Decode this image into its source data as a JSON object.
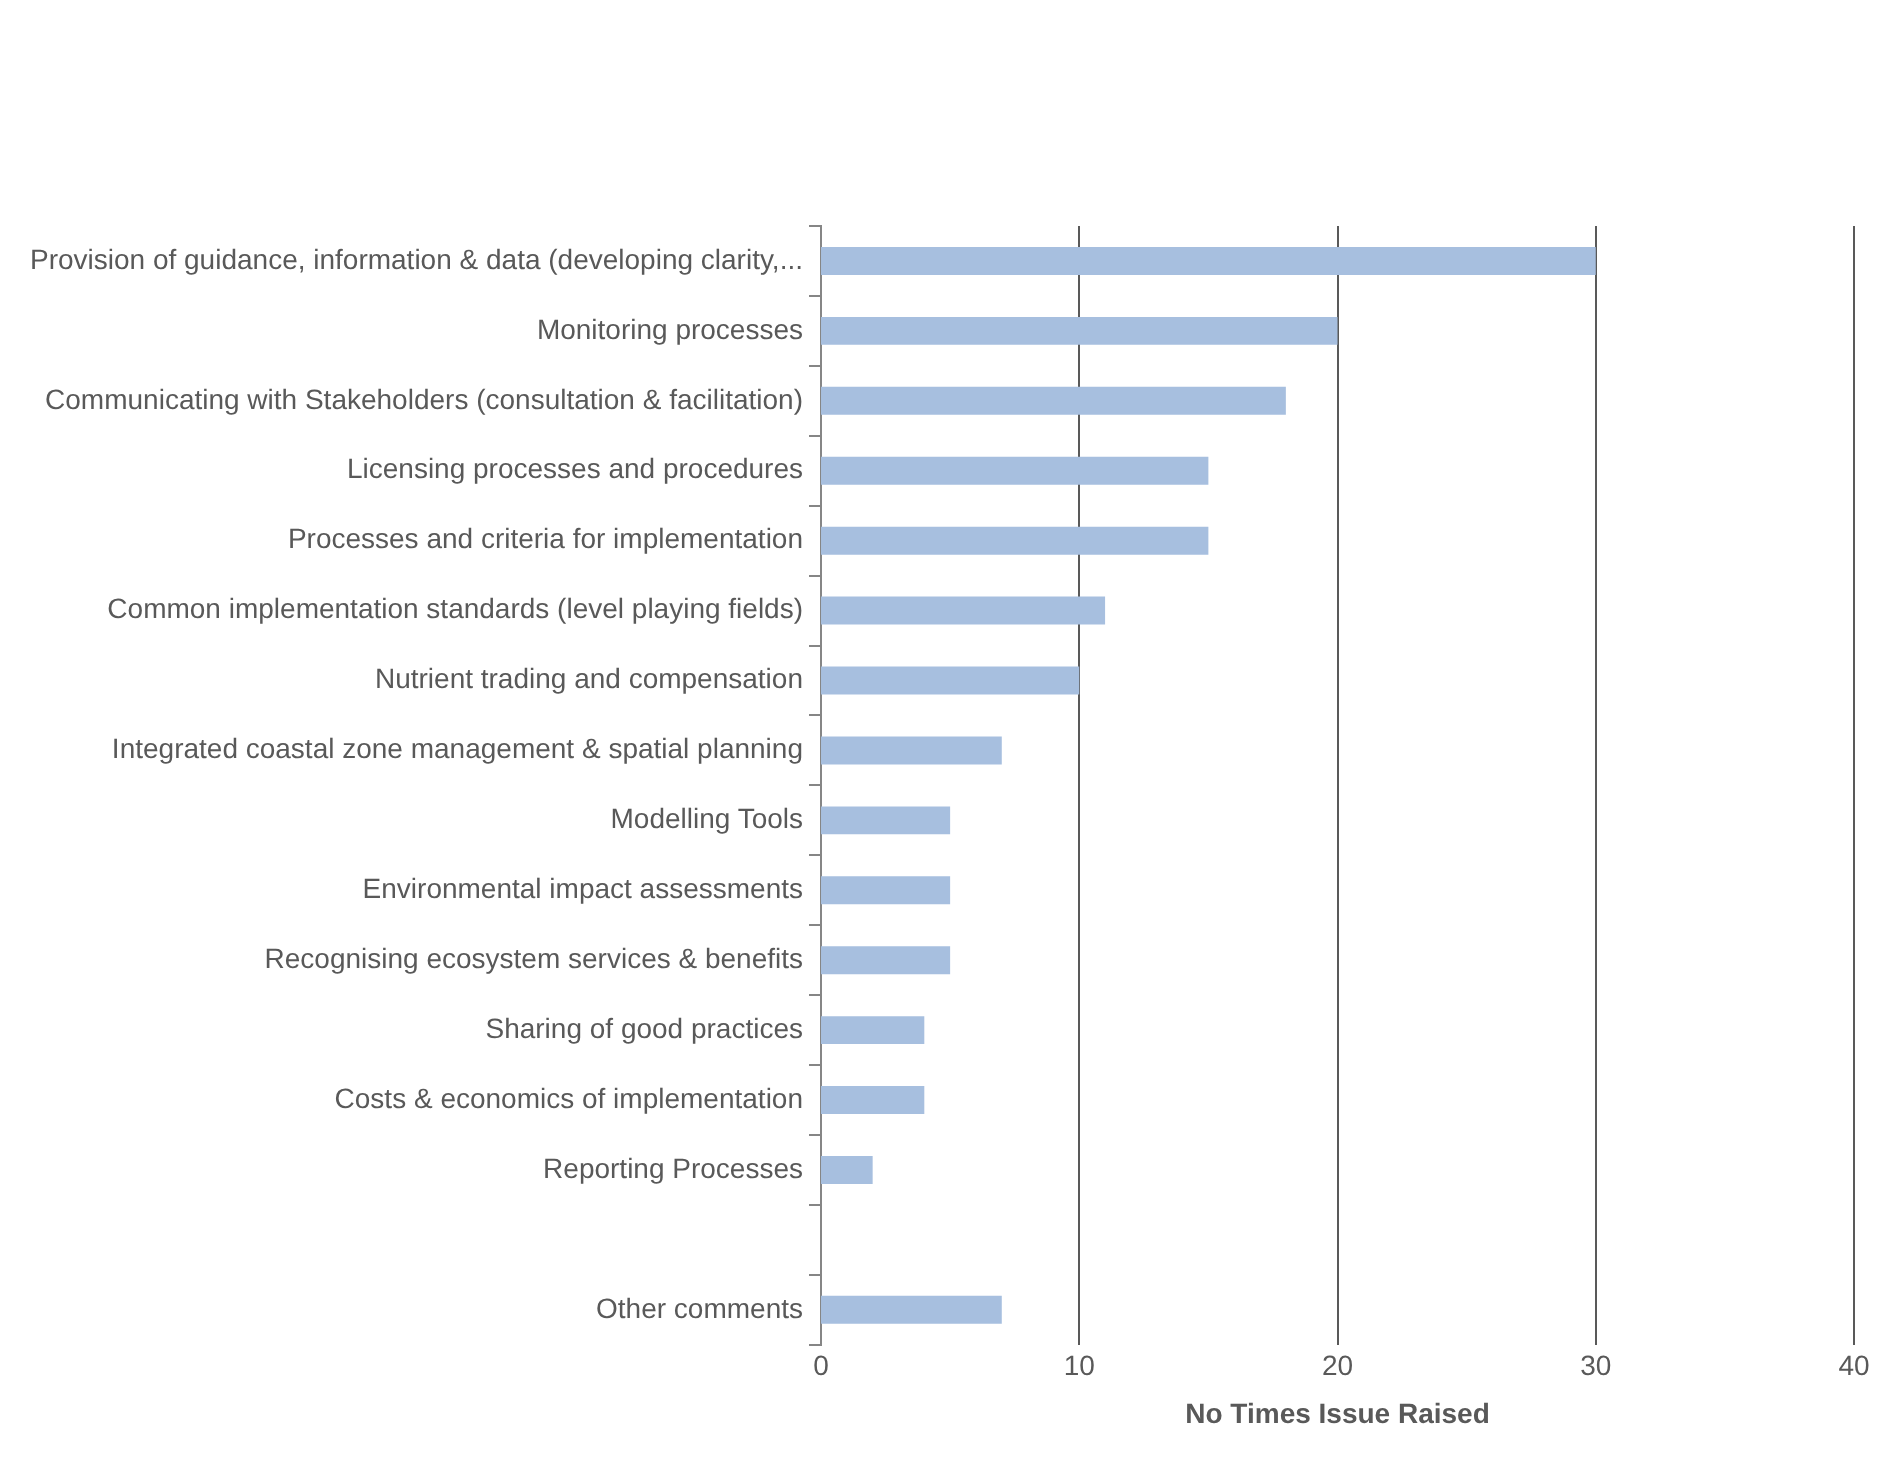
{
  "chart_data": {
    "type": "bar",
    "orientation": "horizontal",
    "xlabel": "No Times Issue Raised",
    "categories": [
      "Provision of guidance, information & data (developing clarity,...",
      "Monitoring processes",
      "Communicating with Stakeholders (consultation & facilitation)",
      "Licensing processes and procedures",
      "Processes and criteria for implementation",
      "Common implementation standards (level playing fields)",
      "Nutrient trading and compensation",
      "Integrated coastal zone management & spatial planning",
      "Modelling Tools",
      "Environmental impact assessments",
      "Recognising ecosystem services & benefits",
      "Sharing of good practices",
      "Costs & economics of implementation",
      "Reporting Processes",
      null,
      "Other comments"
    ],
    "values": [
      30,
      20,
      18,
      15,
      15,
      11,
      10,
      7,
      5,
      5,
      5,
      4,
      4,
      2,
      null,
      7
    ],
    "color": "#a7bfdf",
    "xlim": [
      0,
      40
    ],
    "xticks": [
      0,
      10,
      20,
      30,
      40
    ],
    "grid": "x",
    "legend": false
  }
}
